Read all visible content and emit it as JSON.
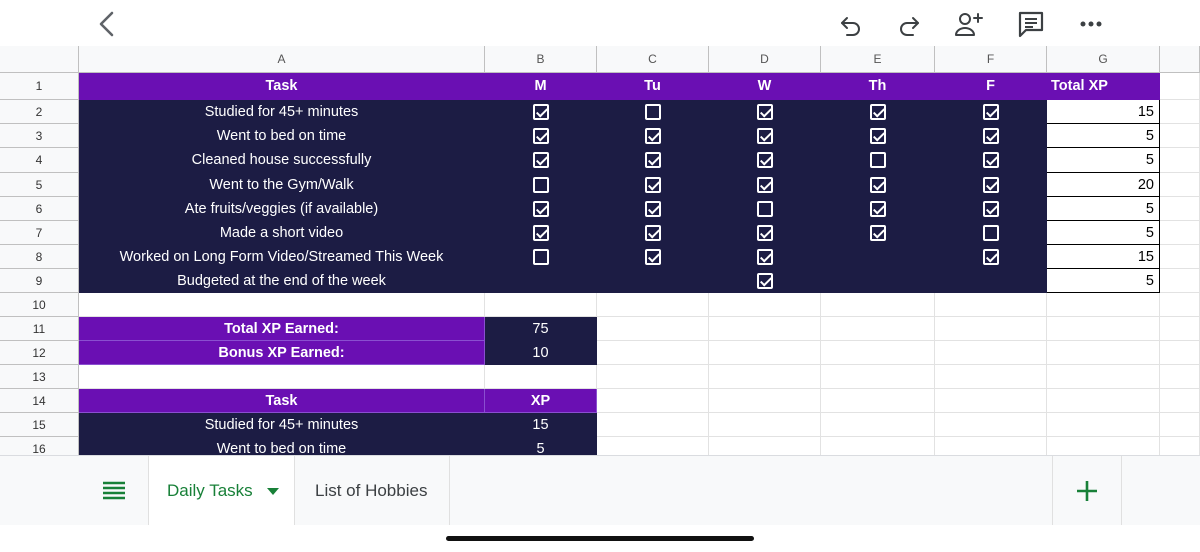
{
  "columns": [
    "A",
    "B",
    "C",
    "D",
    "E",
    "F",
    "G"
  ],
  "rows": [
    "1",
    "2",
    "3",
    "4",
    "5",
    "6",
    "7",
    "8",
    "9",
    "10",
    "11",
    "12",
    "13",
    "14",
    "15",
    "16"
  ],
  "header": {
    "task": "Task",
    "days": [
      "M",
      "Tu",
      "W",
      "Th",
      "F"
    ],
    "total": "Total XP"
  },
  "tasks": [
    {
      "label": "Studied for 45+ minutes",
      "checks": [
        true,
        false,
        true,
        true,
        true
      ],
      "xp": "15"
    },
    {
      "label": "Went to bed on time",
      "checks": [
        true,
        true,
        true,
        true,
        true
      ],
      "xp": "5"
    },
    {
      "label": "Cleaned house successfully",
      "checks": [
        true,
        true,
        true,
        false,
        true
      ],
      "xp": "5"
    },
    {
      "label": "Went to the Gym/Walk",
      "checks": [
        false,
        true,
        true,
        true,
        true
      ],
      "xp": "20"
    },
    {
      "label": "Ate fruits/veggies (if available)",
      "checks": [
        true,
        true,
        false,
        true,
        true
      ],
      "xp": "5"
    },
    {
      "label": "Made a short video",
      "checks": [
        true,
        true,
        true,
        true,
        false
      ],
      "xp": "5"
    },
    {
      "label": "Worked on Long Form Video/Streamed This Week",
      "checks": [
        false,
        true,
        true,
        null,
        true
      ],
      "xp": "15"
    },
    {
      "label": "Budgeted at the end of the week",
      "checks": [
        null,
        null,
        true,
        null,
        null
      ],
      "xp": "5"
    }
  ],
  "summary": [
    {
      "label": "Total XP Earned:",
      "value": "75"
    },
    {
      "label": "Bonus XP Earned:",
      "value": "10"
    }
  ],
  "reference": {
    "header_task": "Task",
    "header_xp": "XP",
    "rows": [
      {
        "label": "Studied for 45+ minutes",
        "xp": "15"
      },
      {
        "label": "Went to bed on time",
        "xp": "5"
      }
    ]
  },
  "tabs": {
    "active": "Daily Tasks",
    "other": "List of Hobbies"
  },
  "icons": {
    "back": "back-arrow-icon",
    "undo": "undo-icon",
    "redo": "redo-icon",
    "share": "add-person-icon",
    "comment": "comment-icon",
    "more": "more-icon"
  },
  "colors": {
    "purple": "#6a0fb3",
    "dark": "#1c1c44",
    "green": "#188038"
  }
}
